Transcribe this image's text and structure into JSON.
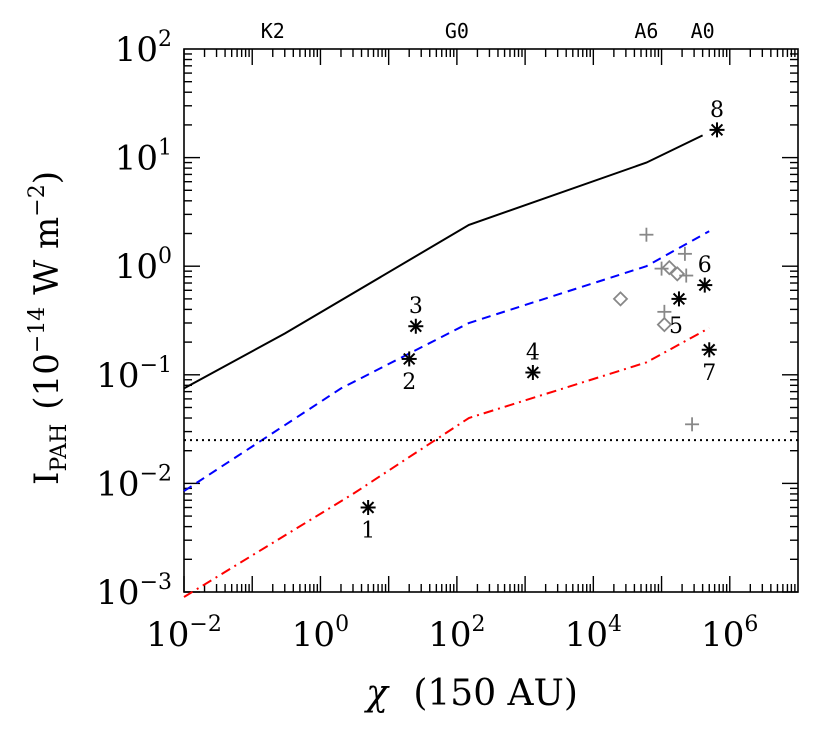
{
  "chart_data": {
    "type": "scatter",
    "xlabel_symbol": "χ",
    "xlabel_rest": "(150 AU)",
    "ylabel_main": "I",
    "ylabel_sub": "PAH",
    "ylabel_rest": "(10",
    "ylabel_exp": "−14",
    "ylabel_unit": "W m",
    "ylabel_unit_exp": "−2",
    "ylabel_close": ")",
    "x_scale": "log",
    "y_scale": "log",
    "xlim": [
      0.01,
      10000000
    ],
    "ylim": [
      0.001,
      100
    ],
    "x_ticks": [
      {
        "value": 0.01,
        "base": "10",
        "exp": "−2"
      },
      {
        "value": 1,
        "base": "10",
        "exp": "0"
      },
      {
        "value": 100,
        "base": "10",
        "exp": "2"
      },
      {
        "value": 10000,
        "base": "10",
        "exp": "4"
      },
      {
        "value": 1000000,
        "base": "10",
        "exp": "6"
      }
    ],
    "y_ticks": [
      {
        "value": 0.001,
        "base": "10",
        "exp": "−3"
      },
      {
        "value": 0.01,
        "base": "10",
        "exp": "−2"
      },
      {
        "value": 0.1,
        "base": "10",
        "exp": "−1"
      },
      {
        "value": 1,
        "base": "10",
        "exp": "0"
      },
      {
        "value": 10,
        "base": "10",
        "exp": "1"
      },
      {
        "value": 100,
        "base": "10",
        "exp": "2"
      }
    ],
    "top_axis_labels": [
      {
        "label": "K2",
        "x": 0.2
      },
      {
        "label": "G0",
        "x": 100
      },
      {
        "label": "A6",
        "x": 60000
      },
      {
        "label": "A0",
        "x": 400000
      }
    ],
    "curves": [
      {
        "style": "solid",
        "color": "#000000",
        "points": [
          [
            0.01,
            0.075
          ],
          [
            0.3,
            0.24
          ],
          [
            150,
            2.4
          ],
          [
            60000,
            9.0
          ],
          [
            400000,
            16.0
          ]
        ]
      },
      {
        "style": "dashed",
        "color": "#0000ff",
        "points": [
          [
            0.01,
            0.0085
          ],
          [
            2,
            0.075
          ],
          [
            150,
            0.3
          ],
          [
            60000,
            1.0
          ],
          [
            500000,
            2.1
          ]
        ]
      },
      {
        "style": "dashdot",
        "color": "#ff0000",
        "points": [
          [
            0.01,
            0.0009
          ],
          [
            3,
            0.008
          ],
          [
            150,
            0.04
          ],
          [
            60000,
            0.13
          ],
          [
            500000,
            0.27
          ]
        ]
      }
    ],
    "threshold": {
      "style": "dotted",
      "color": "#000000",
      "y": 0.025
    },
    "stars": [
      {
        "label": "1",
        "x": 5,
        "y": 0.006,
        "label_pos": "below"
      },
      {
        "label": "2",
        "x": 20,
        "y": 0.14,
        "label_pos": "below"
      },
      {
        "label": "3",
        "x": 25,
        "y": 0.28,
        "label_pos": "above"
      },
      {
        "label": "4",
        "x": 1300,
        "y": 0.105,
        "label_pos": "above"
      },
      {
        "label": "5",
        "x": 180000,
        "y": 0.5,
        "label_pos": "below-left"
      },
      {
        "label": "6",
        "x": 430000,
        "y": 0.67,
        "label_pos": "above"
      },
      {
        "label": "7",
        "x": 500000,
        "y": 0.17,
        "label_pos": "below"
      },
      {
        "label": "8",
        "x": 650000,
        "y": 18.0,
        "label_pos": "above"
      }
    ],
    "grey_diamonds": [
      {
        "x": 25000,
        "y": 0.5
      },
      {
        "x": 110000,
        "y": 0.29
      },
      {
        "x": 130000,
        "y": 0.97
      },
      {
        "x": 170000,
        "y": 0.85
      }
    ],
    "grey_plus": [
      {
        "x": 60000,
        "y": 1.95
      },
      {
        "x": 100000,
        "y": 0.95
      },
      {
        "x": 110000,
        "y": 0.38
      },
      {
        "x": 220000,
        "y": 1.3
      },
      {
        "x": 230000,
        "y": 0.82
      },
      {
        "x": 280000,
        "y": 0.035
      }
    ],
    "grey_color": "#888888",
    "grid": false,
    "legend": "none"
  }
}
